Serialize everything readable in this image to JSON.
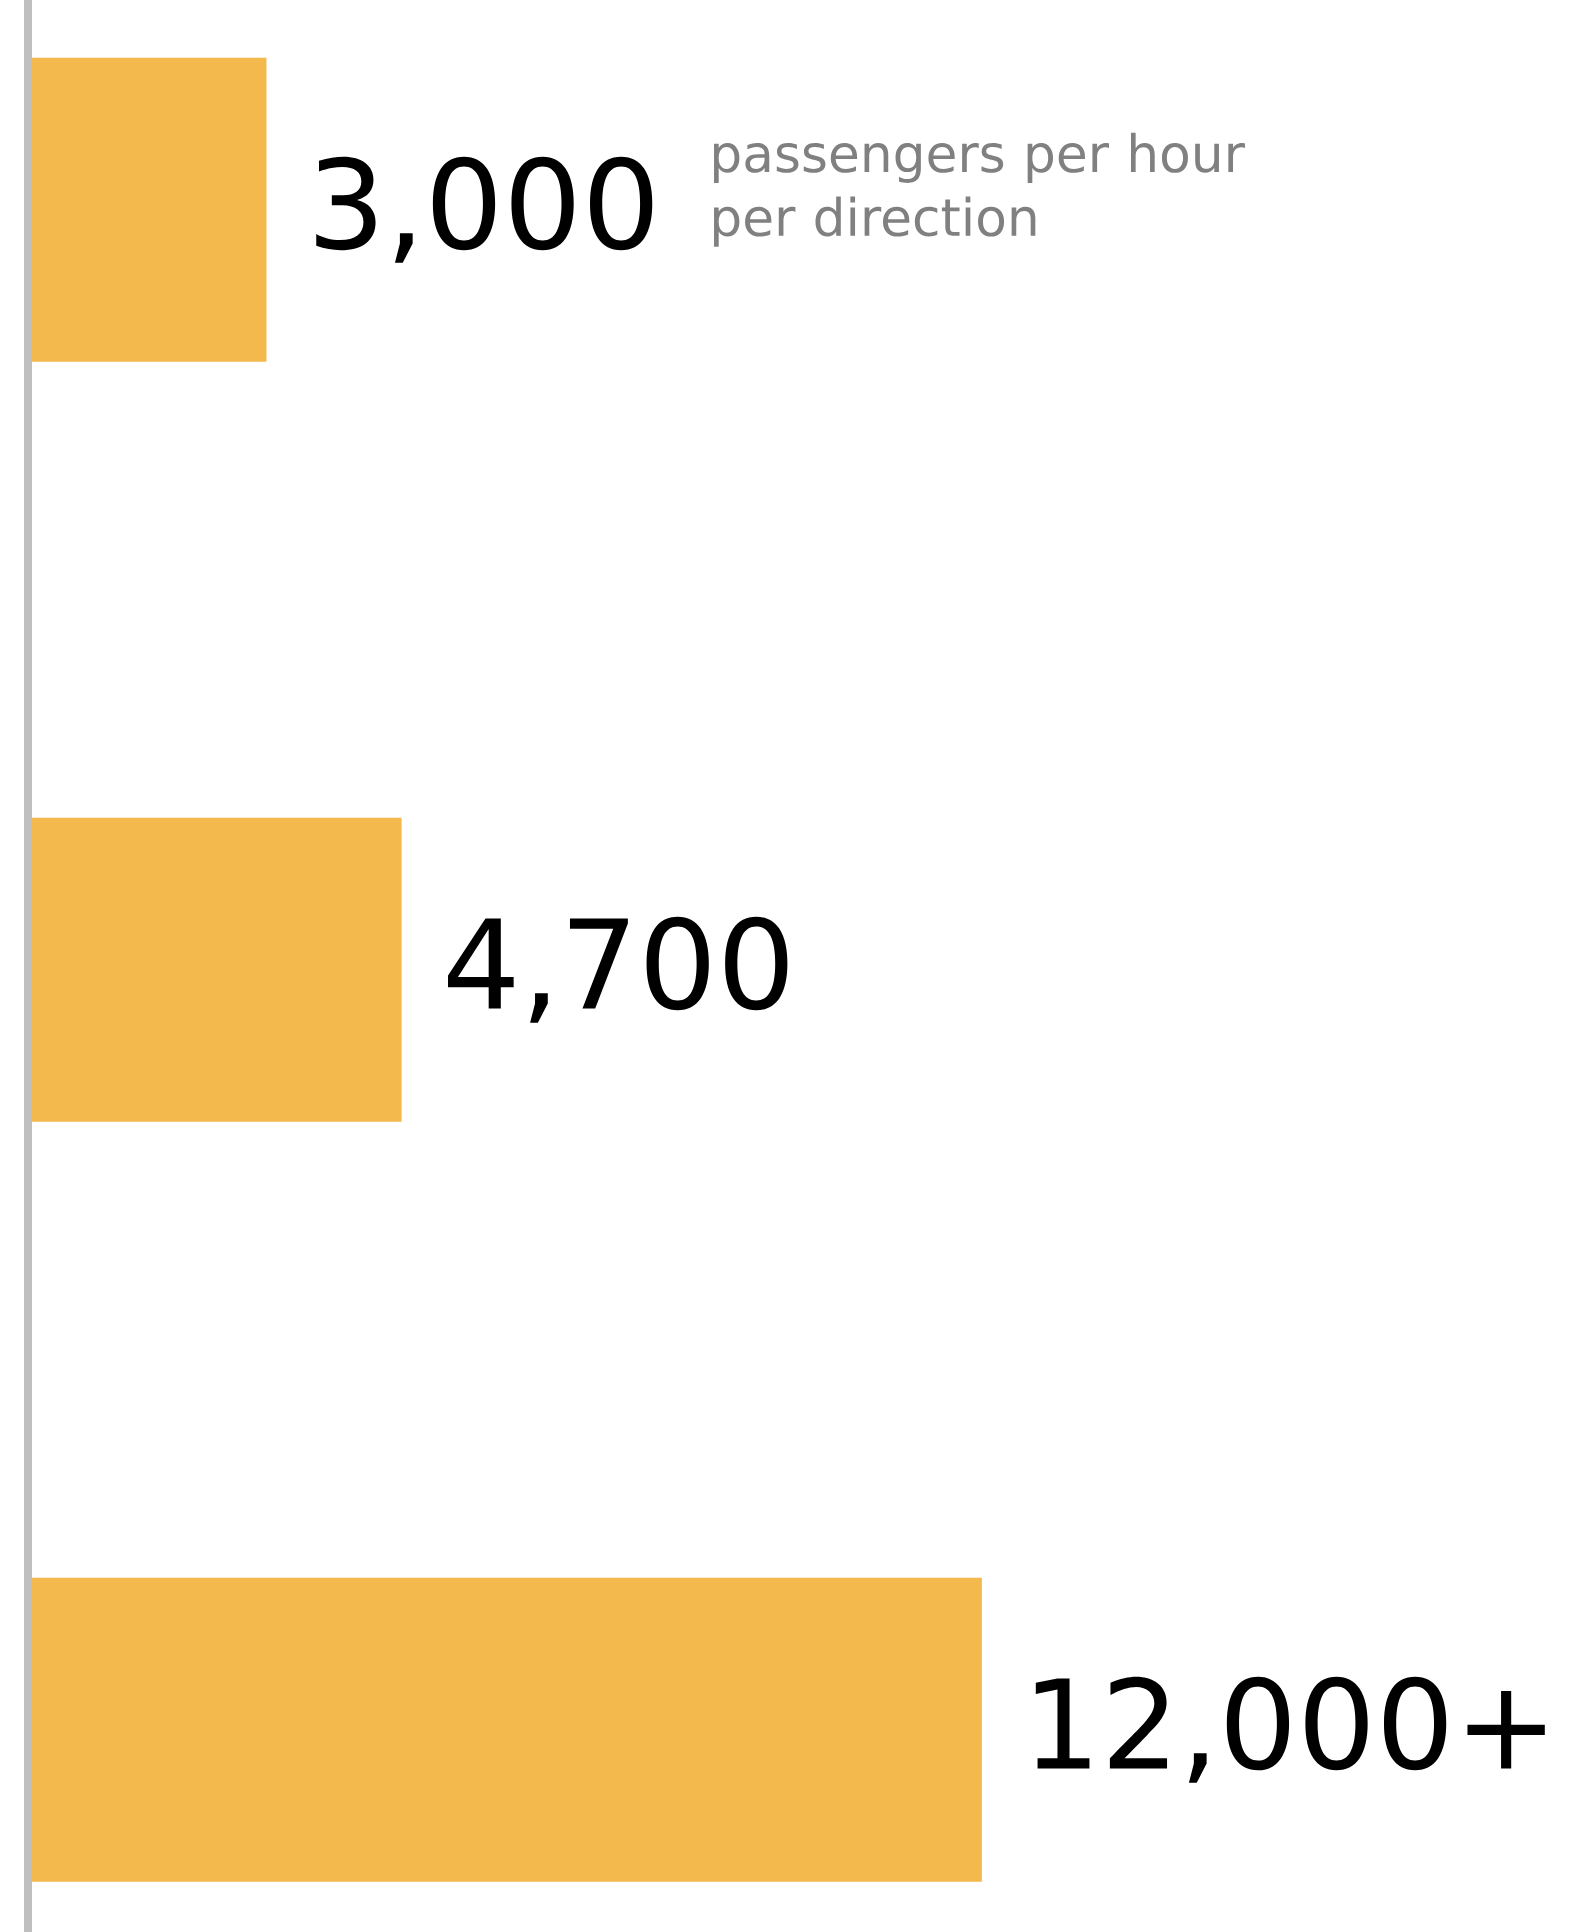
{
  "chart_data": {
    "type": "bar",
    "orientation": "horizontal",
    "categories": [
      null,
      null,
      null
    ],
    "values": [
      3000,
      4700,
      12000
    ],
    "value_labels": [
      "3,000",
      "4,700",
      "12,000+"
    ],
    "color": "#f4b94c",
    "annotations": [
      "passengers per hour per direction"
    ]
  }
}
